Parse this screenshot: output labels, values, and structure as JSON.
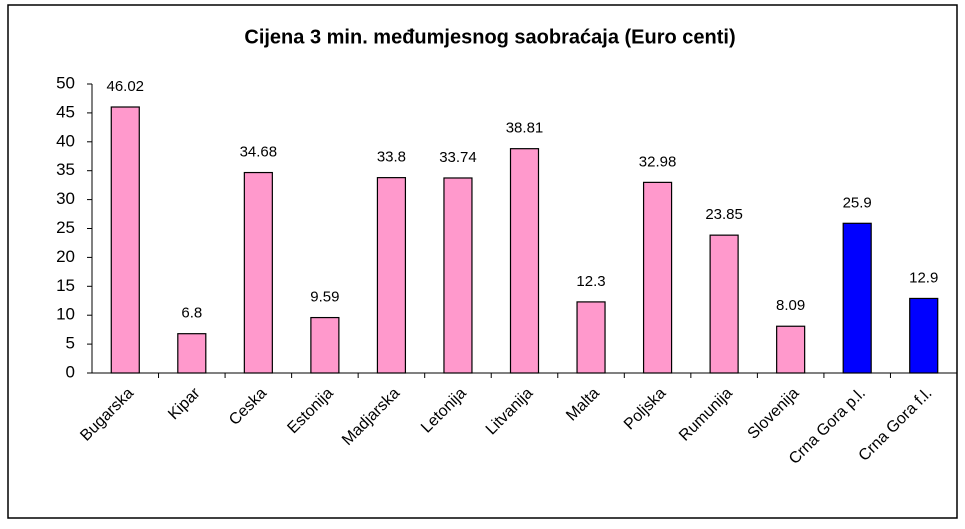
{
  "chart_data": {
    "type": "bar",
    "title": "Cijena 3 min. međumjesnog saobraćaja (Euro centi)",
    "categories": [
      "Bugarska",
      "Kipar",
      "Ceska",
      "Estonija",
      "Madjarska",
      "Letonija",
      "Litvanija",
      "Malta",
      "Poljska",
      "Rumunija",
      "Slovenija",
      "Crna Gora p.l.",
      "Crna Gora f.l."
    ],
    "values": [
      46.02,
      6.8,
      34.68,
      9.59,
      33.8,
      33.74,
      38.81,
      12.3,
      32.98,
      23.85,
      8.09,
      25.9,
      12.9
    ],
    "colors": [
      "#ff99cc",
      "#ff99cc",
      "#ff99cc",
      "#ff99cc",
      "#ff99cc",
      "#ff99cc",
      "#ff99cc",
      "#ff99cc",
      "#ff99cc",
      "#ff99cc",
      "#ff99cc",
      "#0000ff",
      "#0000ff"
    ],
    "ylim": [
      0,
      50
    ],
    "yticks": [
      0,
      5,
      10,
      15,
      20,
      25,
      30,
      35,
      40,
      45,
      50
    ],
    "grid": false
  }
}
